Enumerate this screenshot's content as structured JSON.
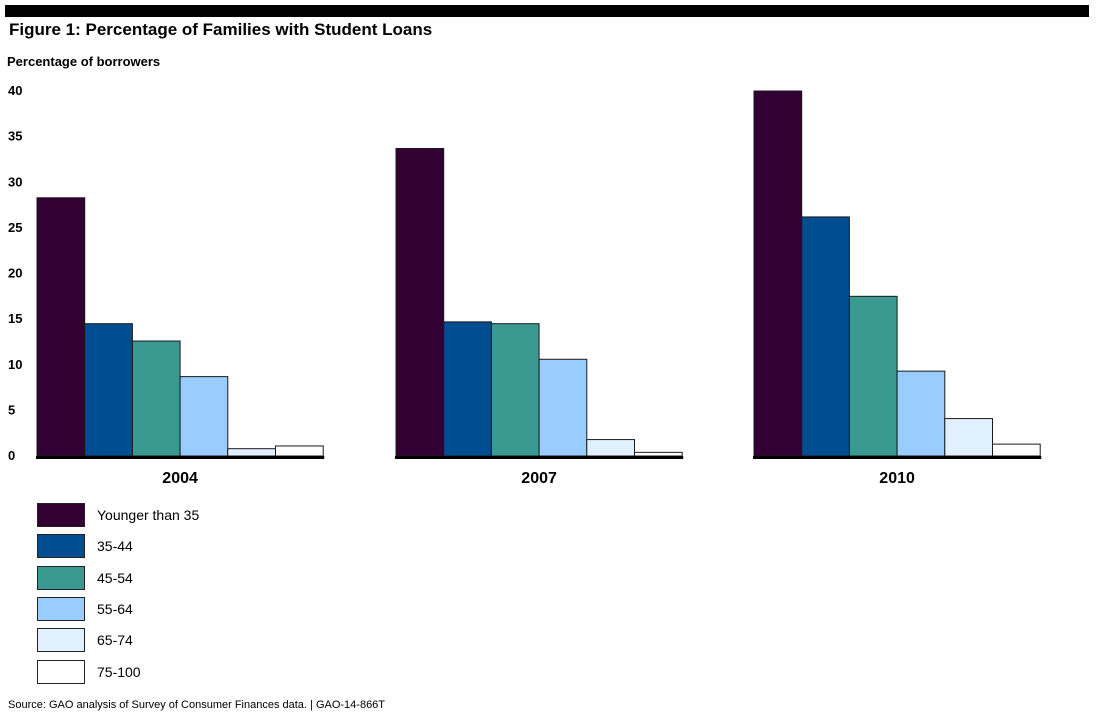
{
  "title": "Figure 1: Percentage of Families with Student Loans",
  "source": "Source: GAO analysis of Survey of Consumer Finances data.  |  GAO-14-866T",
  "chart_data": {
    "type": "bar",
    "title": "Figure 1: Percentage of Families with Student Loans",
    "ylabel": "Percentage of borrowers",
    "xlabel": "",
    "ylim": [
      0,
      40
    ],
    "yticks": [
      0,
      5,
      10,
      15,
      20,
      25,
      30,
      35,
      40
    ],
    "grid": false,
    "legend_position": "bottom-left",
    "categories": [
      "2004",
      "2007",
      "2010"
    ],
    "series": [
      {
        "name": "Younger than 35",
        "color": "#330033",
        "values": [
          28.3,
          33.7,
          40.0
        ]
      },
      {
        "name": "35-44",
        "color": "#004d91",
        "values": [
          14.5,
          14.7,
          26.2
        ]
      },
      {
        "name": "45-54",
        "color": "#3a9991",
        "values": [
          12.6,
          14.5,
          17.5
        ]
      },
      {
        "name": "55-64",
        "color": "#99ccff",
        "values": [
          8.7,
          10.6,
          9.3
        ]
      },
      {
        "name": "65-74",
        "color": "#e1f0ff",
        "values": [
          0.8,
          1.8,
          4.1
        ]
      },
      {
        "name": "75-100",
        "color": "#ffffff",
        "values": [
          1.1,
          0.4,
          1.3
        ]
      }
    ]
  }
}
